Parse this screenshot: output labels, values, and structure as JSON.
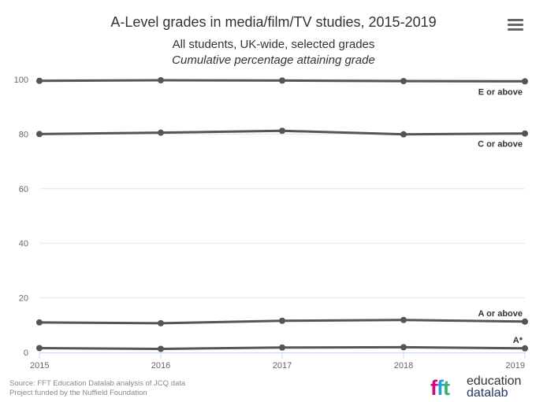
{
  "header": {
    "title": "A-Level grades in media/film/TV studies, 2015-2019",
    "subtitle_line1": "All students, UK-wide, selected grades",
    "subtitle_line2": "Cumulative percentage attaining grade"
  },
  "footer": {
    "source": "Source: FFT Education Datalab analysis of JCQ data",
    "funding": "Project funded by the Nuffield Foundation",
    "logo_word1": "education",
    "logo_word2": "datalab"
  },
  "colors": {
    "series": "#555555",
    "grid": "#e6e6e6",
    "axis_text": "#666666"
  },
  "chart_data": {
    "type": "line",
    "x": [
      2015,
      2016,
      2017,
      2018,
      2019
    ],
    "ylim": [
      0,
      100
    ],
    "yticks": [
      0,
      20,
      40,
      60,
      80,
      100
    ],
    "grid": true,
    "series": [
      {
        "name": "E or above",
        "values": [
          99.5,
          99.7,
          99.6,
          99.4,
          99.3
        ]
      },
      {
        "name": "C or above",
        "values": [
          80.0,
          80.5,
          81.2,
          79.9,
          80.2
        ]
      },
      {
        "name": "A or above",
        "values": [
          11.0,
          10.7,
          11.6,
          11.9,
          11.3
        ]
      },
      {
        "name": "A*",
        "values": [
          1.6,
          1.3,
          1.8,
          1.9,
          1.5
        ]
      }
    ]
  }
}
